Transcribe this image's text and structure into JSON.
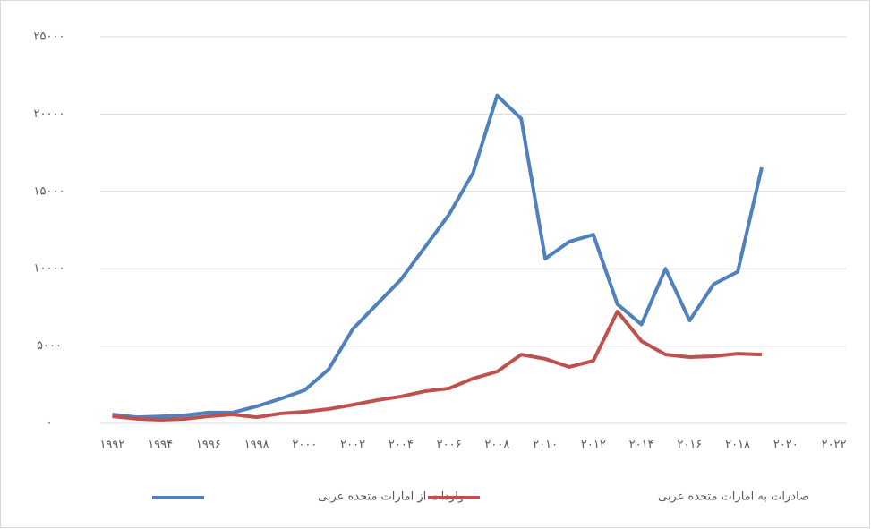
{
  "chart_data": {
    "type": "line",
    "x": [
      1992,
      1993,
      1994,
      1995,
      1996,
      1997,
      1998,
      1999,
      2000,
      2001,
      2002,
      2003,
      2004,
      2005,
      2006,
      2007,
      2008,
      2009,
      2010,
      2011,
      2012,
      2013,
      2014,
      2015,
      2016,
      2017,
      2018,
      2019
    ],
    "series": [
      {
        "name": "واردات از امارات متحده عربی",
        "color": "#4f81bd",
        "values": [
          580,
          400,
          450,
          520,
          700,
          700,
          1100,
          1600,
          2150,
          3500,
          6100,
          7700,
          9300,
          11400,
          13500,
          16200,
          21200,
          19700,
          10650,
          11750,
          12200,
          7700,
          6400,
          10000,
          6650,
          9000,
          9800,
          16550
        ]
      },
      {
        "name": "صادرات به امارات متحده عربی",
        "color": "#c0504d",
        "values": [
          460,
          300,
          230,
          290,
          460,
          580,
          400,
          640,
          750,
          930,
          1200,
          1500,
          1740,
          2080,
          2260,
          2900,
          3350,
          4450,
          4170,
          3650,
          4050,
          7230,
          5320,
          4450,
          4280,
          4340,
          4510,
          4450
        ]
      }
    ],
    "xlim": [
      1991.5,
      2022.5
    ],
    "xticks": [
      {
        "value": 1992,
        "label": "۱۹۹۲"
      },
      {
        "value": 1994,
        "label": "۱۹۹۴"
      },
      {
        "value": 1996,
        "label": "۱۹۹۶"
      },
      {
        "value": 1998,
        "label": "۱۹۹۸"
      },
      {
        "value": 2000,
        "label": "۲۰۰۰"
      },
      {
        "value": 2002,
        "label": "۲۰۰۲"
      },
      {
        "value": 2004,
        "label": "۲۰۰۴"
      },
      {
        "value": 2006,
        "label": "۲۰۰۶"
      },
      {
        "value": 2008,
        "label": "۲۰۰۸"
      },
      {
        "value": 2010,
        "label": "۲۰۱۰"
      },
      {
        "value": 2012,
        "label": "۲۰۱۲"
      },
      {
        "value": 2014,
        "label": "۲۰۱۴"
      },
      {
        "value": 2016,
        "label": "۲۰۱۶"
      },
      {
        "value": 2018,
        "label": "۲۰۱۸"
      },
      {
        "value": 2020,
        "label": "۲۰۲۰"
      },
      {
        "value": 2022,
        "label": "۲۰۲۲"
      }
    ],
    "ylim": [
      0,
      25000
    ],
    "yticks": [
      {
        "value": 0,
        "label": "۰"
      },
      {
        "value": 5000,
        "label": "۵۰۰۰"
      },
      {
        "value": 10000,
        "label": "۱۰۰۰۰"
      },
      {
        "value": 15000,
        "label": "۱۵۰۰۰"
      },
      {
        "value": 20000,
        "label": "۲۰۰۰۰"
      },
      {
        "value": 25000,
        "label": "۲۵۰۰۰"
      }
    ],
    "grid": true,
    "legend": "bottom"
  }
}
